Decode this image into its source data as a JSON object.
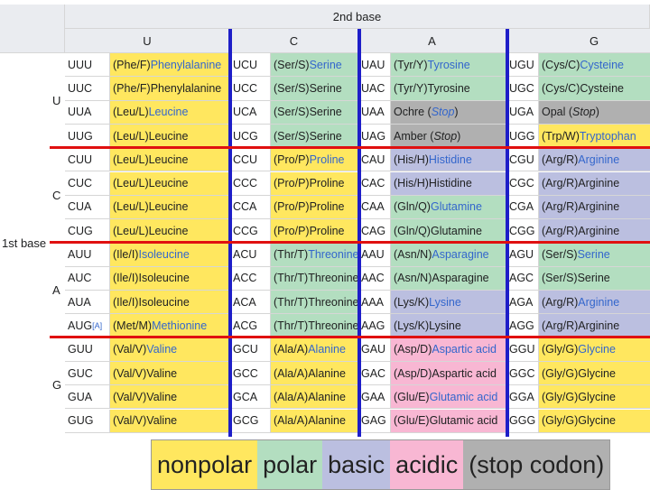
{
  "header": {
    "second_base": "2nd base",
    "first_base": "1st base"
  },
  "columns": [
    "U",
    "C",
    "A",
    "G"
  ],
  "rows": [
    "U",
    "C",
    "A",
    "G"
  ],
  "colors": {
    "nonpolar": "#ffe75f",
    "polar": "#b3dec0",
    "basic": "#bbbfe0",
    "acidic": "#f8b7d3",
    "stop": "#b0b0b0"
  },
  "cells": [
    [
      [
        {
          "codon": "UUU",
          "abbr": "(Phe/F) ",
          "name": "Phenylalanine",
          "cls": "nonpolar"
        },
        {
          "codon": "UCU",
          "abbr": "(Ser/S) ",
          "name": "Serine",
          "cls": "polar"
        },
        {
          "codon": "UAU",
          "abbr": "(Tyr/Y) ",
          "name": "Tyrosine",
          "cls": "polar"
        },
        {
          "codon": "UGU",
          "abbr": "(Cys/C) ",
          "name": "Cysteine",
          "cls": "polar"
        }
      ],
      [
        {
          "codon": "UUC",
          "abbr": "(Phe/F) ",
          "name": "Phenylalanine",
          "cls": "nonpolar",
          "plain": true
        },
        {
          "codon": "UCC",
          "abbr": "(Ser/S) ",
          "name": "Serine",
          "cls": "polar",
          "plain": true
        },
        {
          "codon": "UAC",
          "abbr": "(Tyr/Y) ",
          "name": "Tyrosine",
          "cls": "polar",
          "plain": true
        },
        {
          "codon": "UGC",
          "abbr": "(Cys/C) ",
          "name": "Cysteine",
          "cls": "polar",
          "plain": true
        }
      ],
      [
        {
          "codon": "UUA",
          "abbr": "(Leu/L) ",
          "name": "Leucine",
          "cls": "nonpolar"
        },
        {
          "codon": "UCA",
          "abbr": "(Ser/S) ",
          "name": "Serine",
          "cls": "polar",
          "plain": true
        },
        {
          "codon": "UAA",
          "abbr": "Ochre (",
          "name": "Stop",
          "tail": ")",
          "cls": "stop"
        },
        {
          "codon": "UGA",
          "abbr": "Opal (",
          "name": "Stop",
          "tail": ")",
          "cls": "stop",
          "plain": true
        }
      ],
      [
        {
          "codon": "UUG",
          "abbr": "(Leu/L) ",
          "name": "Leucine",
          "cls": "nonpolar",
          "plain": true
        },
        {
          "codon": "UCG",
          "abbr": "(Ser/S) ",
          "name": "Serine",
          "cls": "polar",
          "plain": true
        },
        {
          "codon": "UAG",
          "abbr": "Amber (",
          "name": "Stop",
          "tail": ")",
          "cls": "stop",
          "plain": true
        },
        {
          "codon": "UGG",
          "abbr": "(Trp/W) ",
          "name": "Tryptophan",
          "cls": "nonpolar"
        }
      ]
    ],
    [
      [
        {
          "codon": "CUU",
          "abbr": "(Leu/L) ",
          "name": "Leucine",
          "cls": "nonpolar",
          "plain": true
        },
        {
          "codon": "CCU",
          "abbr": "(Pro/P) ",
          "name": "Proline",
          "cls": "nonpolar"
        },
        {
          "codon": "CAU",
          "abbr": "(His/H) ",
          "name": "Histidine",
          "cls": "basic"
        },
        {
          "codon": "CGU",
          "abbr": "(Arg/R) ",
          "name": "Arginine",
          "cls": "basic"
        }
      ],
      [
        {
          "codon": "CUC",
          "abbr": "(Leu/L) ",
          "name": "Leucine",
          "cls": "nonpolar",
          "plain": true
        },
        {
          "codon": "CCC",
          "abbr": "(Pro/P) ",
          "name": "Proline",
          "cls": "nonpolar",
          "plain": true
        },
        {
          "codon": "CAC",
          "abbr": "(His/H) ",
          "name": "Histidine",
          "cls": "basic",
          "plain": true
        },
        {
          "codon": "CGC",
          "abbr": "(Arg/R) ",
          "name": "Arginine",
          "cls": "basic",
          "plain": true
        }
      ],
      [
        {
          "codon": "CUA",
          "abbr": "(Leu/L) ",
          "name": "Leucine",
          "cls": "nonpolar",
          "plain": true
        },
        {
          "codon": "CCA",
          "abbr": "(Pro/P) ",
          "name": "Proline",
          "cls": "nonpolar",
          "plain": true
        },
        {
          "codon": "CAA",
          "abbr": "(Gln/Q) ",
          "name": "Glutamine",
          "cls": "polar"
        },
        {
          "codon": "CGA",
          "abbr": "(Arg/R) ",
          "name": "Arginine",
          "cls": "basic",
          "plain": true
        }
      ],
      [
        {
          "codon": "CUG",
          "abbr": "(Leu/L) ",
          "name": "Leucine",
          "cls": "nonpolar",
          "plain": true
        },
        {
          "codon": "CCG",
          "abbr": "(Pro/P) ",
          "name": "Proline",
          "cls": "nonpolar",
          "plain": true
        },
        {
          "codon": "CAG",
          "abbr": "(Gln/Q) ",
          "name": "Glutamine",
          "cls": "polar",
          "plain": true
        },
        {
          "codon": "CGG",
          "abbr": "(Arg/R) ",
          "name": "Arginine",
          "cls": "basic",
          "plain": true
        }
      ]
    ],
    [
      [
        {
          "codon": "AUU",
          "abbr": "(Ile/I) ",
          "name": "Isoleucine",
          "cls": "nonpolar"
        },
        {
          "codon": "ACU",
          "abbr": "(Thr/T) ",
          "name": "Threonine",
          "cls": "polar"
        },
        {
          "codon": "AAU",
          "abbr": "(Asn/N) ",
          "name": "Asparagine",
          "cls": "polar"
        },
        {
          "codon": "AGU",
          "abbr": "(Ser/S) ",
          "name": "Serine",
          "cls": "polar"
        }
      ],
      [
        {
          "codon": "AUC",
          "abbr": "(Ile/I) ",
          "name": "Isoleucine",
          "cls": "nonpolar",
          "plain": true
        },
        {
          "codon": "ACC",
          "abbr": "(Thr/T) ",
          "name": "Threonine",
          "cls": "polar",
          "plain": true
        },
        {
          "codon": "AAC",
          "abbr": "(Asn/N) ",
          "name": "Asparagine",
          "cls": "polar",
          "plain": true
        },
        {
          "codon": "AGC",
          "abbr": "(Ser/S) ",
          "name": "Serine",
          "cls": "polar",
          "plain": true
        }
      ],
      [
        {
          "codon": "AUA",
          "abbr": "(Ile/I) ",
          "name": "Isoleucine",
          "cls": "nonpolar",
          "plain": true
        },
        {
          "codon": "ACA",
          "abbr": "(Thr/T) ",
          "name": "Threonine",
          "cls": "polar",
          "plain": true
        },
        {
          "codon": "AAA",
          "abbr": "(Lys/K) ",
          "name": "Lysine",
          "cls": "basic"
        },
        {
          "codon": "AGA",
          "abbr": "(Arg/R) ",
          "name": "Arginine",
          "cls": "basic"
        }
      ],
      [
        {
          "codon": "AUG",
          "sup": "[A]",
          "abbr": "(Met/M) ",
          "name": "Methionine",
          "cls": "nonpolar"
        },
        {
          "codon": "ACG",
          "abbr": "(Thr/T) ",
          "name": "Threonine",
          "cls": "polar",
          "plain": true
        },
        {
          "codon": "AAG",
          "abbr": "(Lys/K) ",
          "name": "Lysine",
          "cls": "basic",
          "plain": true
        },
        {
          "codon": "AGG",
          "abbr": "(Arg/R) ",
          "name": "Arginine",
          "cls": "basic",
          "plain": true
        }
      ]
    ],
    [
      [
        {
          "codon": "GUU",
          "abbr": "(Val/V) ",
          "name": "Valine",
          "cls": "nonpolar"
        },
        {
          "codon": "GCU",
          "abbr": "(Ala/A) ",
          "name": "Alanine",
          "cls": "nonpolar"
        },
        {
          "codon": "GAU",
          "abbr": "(Asp/D) ",
          "name": "Aspartic acid",
          "cls": "acidic"
        },
        {
          "codon": "GGU",
          "abbr": "(Gly/G) ",
          "name": "Glycine",
          "cls": "nonpolar"
        }
      ],
      [
        {
          "codon": "GUC",
          "abbr": "(Val/V) ",
          "name": "Valine",
          "cls": "nonpolar",
          "plain": true
        },
        {
          "codon": "GCC",
          "abbr": "(Ala/A) ",
          "name": "Alanine",
          "cls": "nonpolar",
          "plain": true
        },
        {
          "codon": "GAC",
          "abbr": "(Asp/D) ",
          "name": "Aspartic acid",
          "cls": "acidic",
          "plain": true
        },
        {
          "codon": "GGC",
          "abbr": "(Gly/G) ",
          "name": "Glycine",
          "cls": "nonpolar",
          "plain": true
        }
      ],
      [
        {
          "codon": "GUA",
          "abbr": "(Val/V) ",
          "name": "Valine",
          "cls": "nonpolar",
          "plain": true
        },
        {
          "codon": "GCA",
          "abbr": "(Ala/A) ",
          "name": "Alanine",
          "cls": "nonpolar",
          "plain": true
        },
        {
          "codon": "GAA",
          "abbr": "(Glu/E) ",
          "name": "Glutamic acid",
          "cls": "acidic"
        },
        {
          "codon": "GGA",
          "abbr": "(Gly/G) ",
          "name": "Glycine",
          "cls": "nonpolar",
          "plain": true
        }
      ],
      [
        {
          "codon": "GUG",
          "abbr": "(Val/V) ",
          "name": "Valine",
          "cls": "nonpolar",
          "plain": true
        },
        {
          "codon": "GCG",
          "abbr": "(Ala/A) ",
          "name": "Alanine",
          "cls": "nonpolar",
          "plain": true
        },
        {
          "codon": "GAG",
          "abbr": "(Glu/E) ",
          "name": "Glutamic acid",
          "cls": "acidic",
          "plain": true
        },
        {
          "codon": "GGG",
          "abbr": "(Gly/G) ",
          "name": "Glycine",
          "cls": "nonpolar",
          "plain": true
        }
      ]
    ]
  ],
  "legend": [
    {
      "label": "nonpolar",
      "cls": "nonpolar"
    },
    {
      "label": "polar",
      "cls": "polar"
    },
    {
      "label": "basic",
      "cls": "basic"
    },
    {
      "label": "acidic",
      "cls": "acidic"
    },
    {
      "label": "(stop codon)",
      "cls": "stop"
    }
  ]
}
